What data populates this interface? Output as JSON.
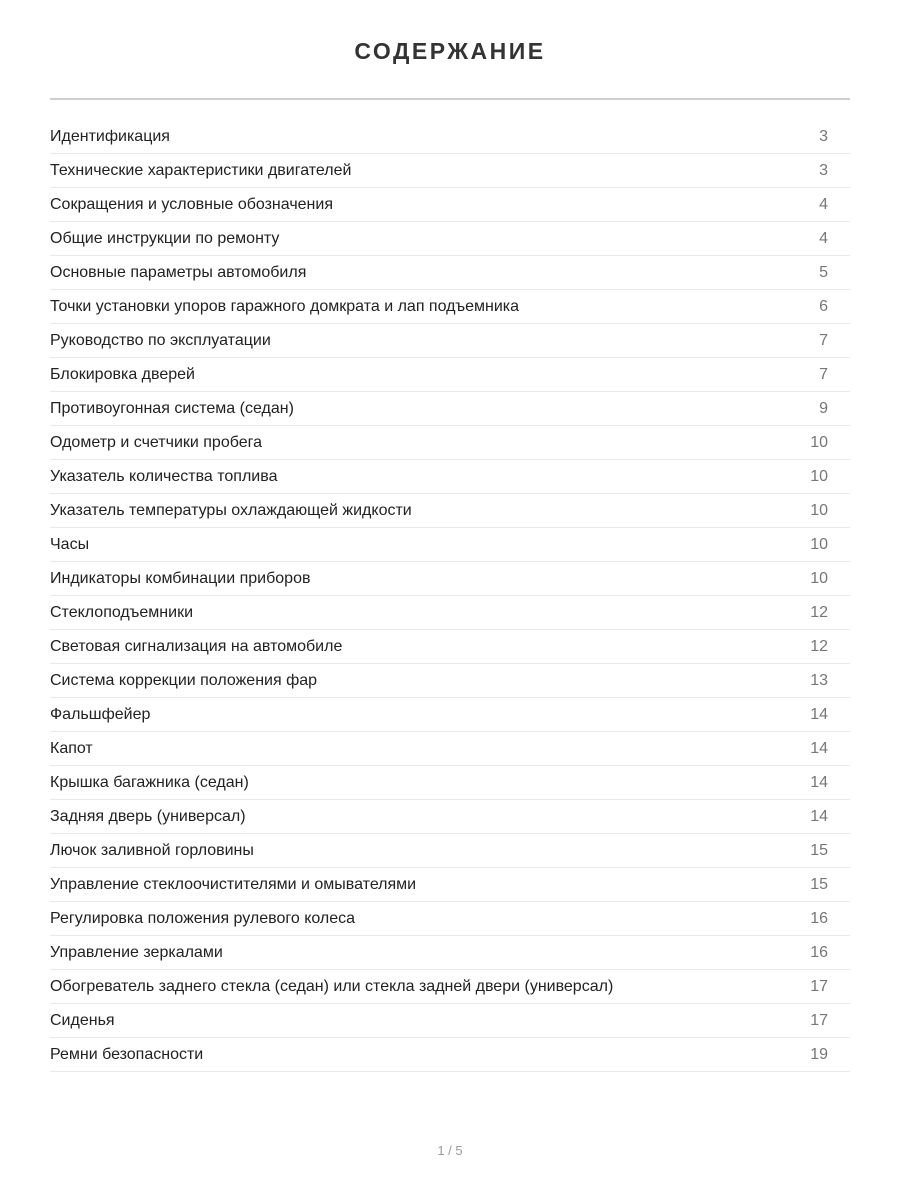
{
  "title": "СОДЕРЖАНИЕ",
  "entries": [
    {
      "label": "Идентификация",
      "page": "3"
    },
    {
      "label": "Технические характеристики двигателей",
      "page": "3"
    },
    {
      "label": "Сокращения и условные обозначения",
      "page": "4"
    },
    {
      "label": "Общие инструкции по ремонту",
      "page": "4"
    },
    {
      "label": "Основные параметры автомобиля",
      "page": "5"
    },
    {
      "label": "Точки установки упоров гаражного домкрата и лап подъемника",
      "page": "6"
    },
    {
      "label": "Руководство по эксплуатации",
      "page": "7"
    },
    {
      "label": "Блокировка дверей",
      "page": "7"
    },
    {
      "label": "Противоугонная система (седан)",
      "page": "9"
    },
    {
      "label": "Одометр и счетчики пробега",
      "page": "10"
    },
    {
      "label": "Указатель количества топлива",
      "page": "10"
    },
    {
      "label": "Указатель температуры охлаждающей жидкости",
      "page": "10"
    },
    {
      "label": "Часы",
      "page": "10"
    },
    {
      "label": "Индикаторы комбинации приборов",
      "page": "10"
    },
    {
      "label": "Стеклоподъемники",
      "page": "12"
    },
    {
      "label": "Световая сигнализация на автомобиле",
      "page": "12"
    },
    {
      "label": "Система коррекции положения фар",
      "page": "13"
    },
    {
      "label": "Фальшфейер",
      "page": "14"
    },
    {
      "label": "Капот",
      "page": "14"
    },
    {
      "label": "Крышка багажника (седан)",
      "page": "14"
    },
    {
      "label": "Задняя дверь (универсал)",
      "page": "14"
    },
    {
      "label": "Лючок заливной горловины",
      "page": "15"
    },
    {
      "label": "Управление стеклоочистителями и омывателями",
      "page": "15"
    },
    {
      "label": "Регулировка положения рулевого колеса",
      "page": "16"
    },
    {
      "label": "Управление зеркалами",
      "page": "16"
    },
    {
      "label": "Обогреватель заднего стекла (седан) или стекла задней двери (универсал)",
      "page": "17"
    },
    {
      "label": "Сиденья",
      "page": "17"
    },
    {
      "label": "Ремни безопасности",
      "page": "19"
    }
  ],
  "footer": {
    "page_indicator": "1 / 5"
  }
}
